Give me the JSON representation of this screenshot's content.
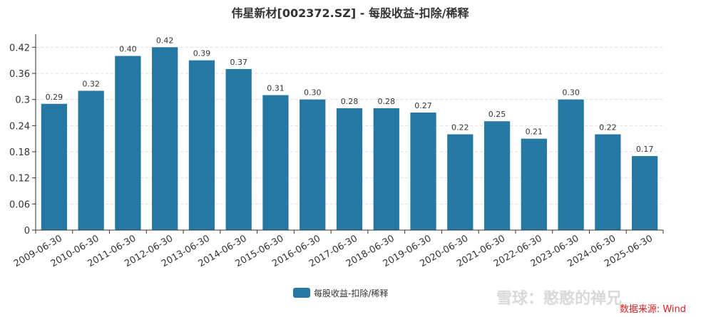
{
  "chart_data": {
    "type": "bar",
    "title": "伟星新材[002372.SZ] - 每股收益-扣除/稀释",
    "categories": [
      "2009-06-30",
      "2010-06-30",
      "2011-06-30",
      "2012-06-30",
      "2013-06-30",
      "2014-06-30",
      "2015-06-30",
      "2016-06-30",
      "2017-06-30",
      "2018-06-30",
      "2019-06-30",
      "2020-06-30",
      "2021-06-30",
      "2022-06-30",
      "2023-06-30",
      "2024-06-30",
      "2025-06-30"
    ],
    "series": [
      {
        "name": "每股收益-扣除/稀释",
        "values": [
          0.29,
          0.32,
          0.4,
          0.42,
          0.39,
          0.37,
          0.31,
          0.3,
          0.28,
          0.28,
          0.27,
          0.22,
          0.25,
          0.21,
          0.3,
          0.22,
          0.17
        ],
        "labels": [
          "0.29",
          "0.32",
          "0.40",
          "0.42",
          "0.39",
          "0.37",
          "0.31",
          "0.30",
          "0.28",
          "0.28",
          "0.27",
          "0.22",
          "0.25",
          "0.21",
          "0.30",
          "0.22",
          "0.17"
        ],
        "color": "#2577a4"
      }
    ],
    "yticks": [
      "0",
      "0.06",
      "0.12",
      "0.18",
      "0.24",
      "0.3",
      "0.36",
      "0.42"
    ],
    "ylim": [
      0,
      0.45
    ],
    "grid": true,
    "legend_position": "bottom"
  },
  "watermark": "雪球：憨憨的禅兄",
  "source": "数据来源: Wind"
}
